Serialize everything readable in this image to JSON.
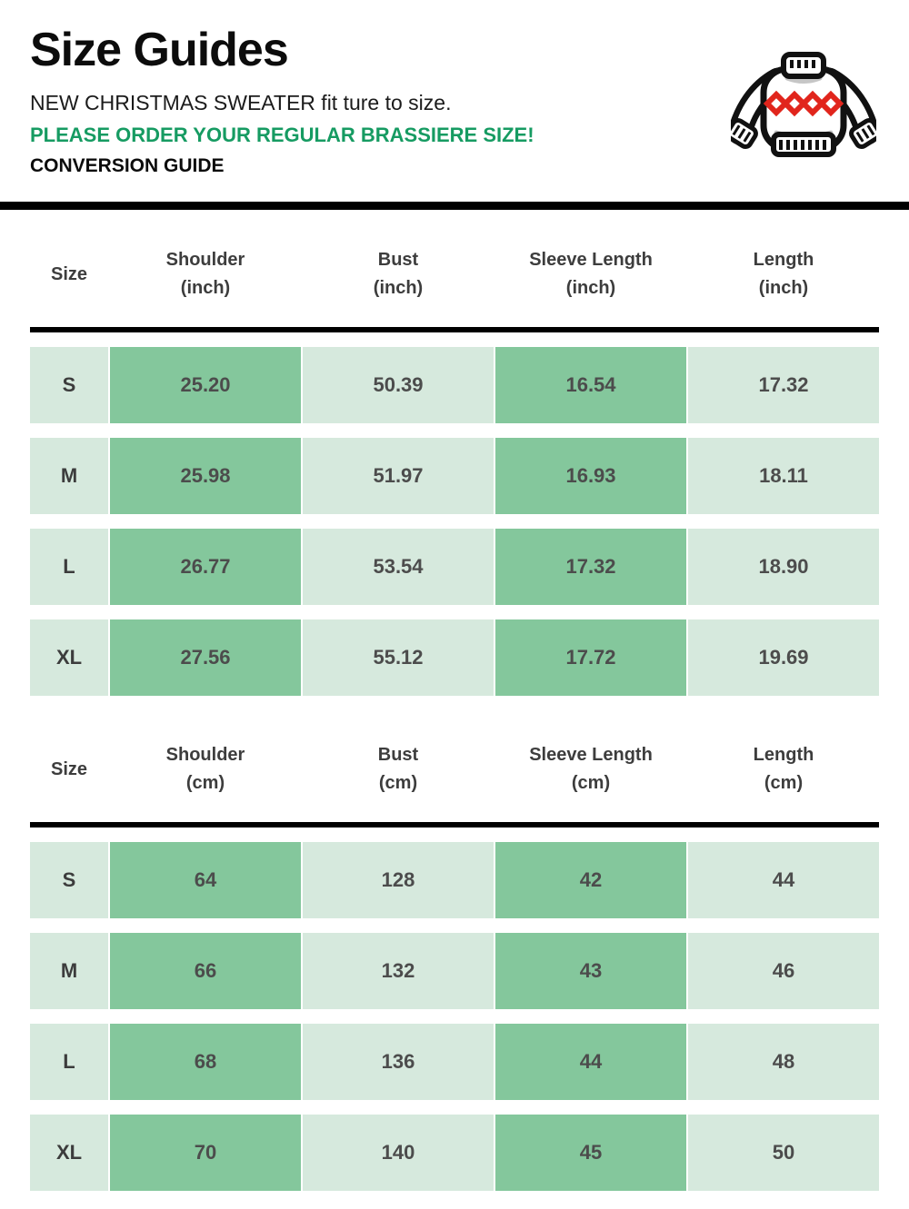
{
  "header": {
    "title": "Size Guides",
    "fit_note": "NEW CHRISTMAS SWEATER fit ture to size.",
    "warning": "PLEASE ORDER YOUR REGULAR BRASSIERE SIZE!",
    "conversion_label": "CONVERSION GUIDE",
    "icon": "christmas-sweater-icon"
  },
  "colors": {
    "accent_green_text": "#169b62",
    "cell_dark_green": "#84c79c",
    "cell_light_green": "#d6e9dd",
    "cell_text": "#4c4c4c",
    "divider_black": "#000000",
    "diamond_red": "#e1251c"
  },
  "tables": [
    {
      "unit_label": "(inch)",
      "headers": [
        {
          "label": "Size",
          "unit": ""
        },
        {
          "label": "Shoulder",
          "unit": "(inch)"
        },
        {
          "label": "Bust",
          "unit": "(inch)"
        },
        {
          "label": "Sleeve Length",
          "unit": "(inch)"
        },
        {
          "label": "Length",
          "unit": "(inch)"
        }
      ],
      "rows": [
        {
          "size": "S",
          "values": [
            "25.20",
            "50.39",
            "16.54",
            "17.32"
          ]
        },
        {
          "size": "M",
          "values": [
            "25.98",
            "51.97",
            "16.93",
            "18.11"
          ]
        },
        {
          "size": "L",
          "values": [
            "26.77",
            "53.54",
            "17.32",
            "18.90"
          ]
        },
        {
          "size": "XL",
          "values": [
            "27.56",
            "55.12",
            "17.72",
            "19.69"
          ]
        }
      ]
    },
    {
      "unit_label": "(cm)",
      "headers": [
        {
          "label": "Size",
          "unit": ""
        },
        {
          "label": "Shoulder",
          "unit": "(cm)"
        },
        {
          "label": "Bust",
          "unit": "(cm)"
        },
        {
          "label": "Sleeve Length",
          "unit": "(cm)"
        },
        {
          "label": "Length",
          "unit": "(cm)"
        }
      ],
      "rows": [
        {
          "size": "S",
          "values": [
            "64",
            "128",
            "42",
            "44"
          ]
        },
        {
          "size": "M",
          "values": [
            "66",
            "132",
            "43",
            "46"
          ]
        },
        {
          "size": "L",
          "values": [
            "68",
            "136",
            "44",
            "48"
          ]
        },
        {
          "size": "XL",
          "values": [
            "70",
            "140",
            "45",
            "50"
          ]
        }
      ]
    }
  ]
}
